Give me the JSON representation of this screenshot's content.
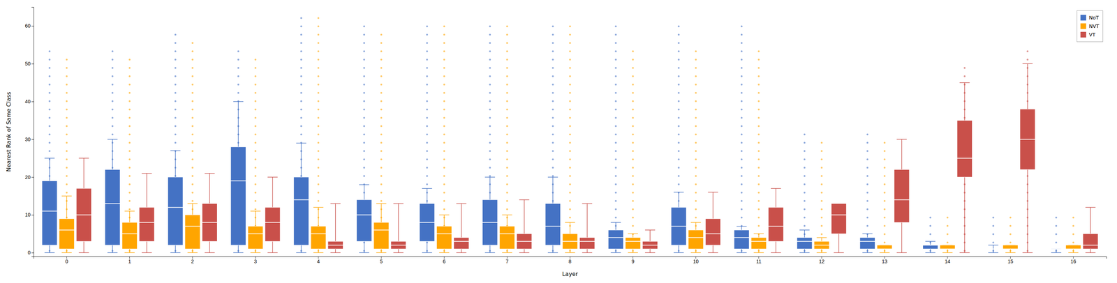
{
  "chart_data": {
    "type": "box",
    "xlabel": "Layer",
    "ylabel": "Nearest Rank of Same Class",
    "categories": [
      "0",
      "1",
      "2",
      "3",
      "4",
      "5",
      "6",
      "7",
      "8",
      "9",
      "10",
      "11",
      "12",
      "13",
      "14",
      "15",
      "16"
    ],
    "ylim": [
      -1,
      65
    ],
    "yticks": [
      0,
      10,
      20,
      30,
      40,
      50,
      60
    ],
    "grid": false,
    "legend": "upper right",
    "series": [
      {
        "name": "NoT",
        "color": "#4472C4",
        "q1": [
          2,
          2,
          2,
          2,
          2,
          3,
          3,
          2,
          2,
          1,
          2,
          1,
          1,
          1,
          1,
          1,
          1
        ],
        "median": [
          11,
          13,
          12,
          19,
          14,
          10,
          8,
          8,
          7,
          4,
          7,
          4,
          3,
          3,
          2,
          1,
          1
        ],
        "q3": [
          19,
          22,
          20,
          28,
          20,
          14,
          13,
          14,
          13,
          6,
          12,
          6,
          4,
          4,
          2,
          1,
          1
        ],
        "whislo": [
          0,
          0,
          0,
          0,
          0,
          0,
          0,
          0,
          0,
          0,
          0,
          0,
          0,
          0,
          0,
          0,
          0
        ],
        "whishi": [
          25,
          30,
          27,
          40,
          29,
          18,
          17,
          20,
          20,
          8,
          16,
          7,
          6,
          5,
          3,
          2,
          1
        ],
        "dots": [
          [
            0.5,
            2.7,
            4.9,
            7.1,
            9.3,
            11.5,
            13.7,
            15.9,
            18.1,
            20.3,
            22.5,
            24.7,
            26.9,
            29.1,
            31.3,
            33.5,
            35.7,
            37.9,
            40.1,
            42.3,
            44.5,
            46.7,
            48.9,
            51.1,
            53.3
          ],
          [
            0.5,
            2.7,
            4.9,
            7.1,
            9.3,
            11.5,
            13.7,
            15.9,
            18.1,
            20.3,
            22.5,
            24.7,
            26.9,
            29.1,
            31.3,
            33.5,
            35.7,
            37.9,
            40.1,
            42.3,
            44.5,
            46.7,
            48.9,
            51.1,
            53.3
          ],
          [
            0.5,
            2.7,
            4.9,
            7.1,
            9.3,
            11.5,
            13.7,
            15.9,
            18.1,
            20.3,
            22.5,
            24.7,
            26.9,
            29.1,
            31.3,
            33.5,
            35.7,
            37.9,
            40.1,
            42.3,
            44.5,
            46.7,
            48.9,
            51.1,
            53.3,
            55.5,
            57.7
          ],
          [
            0.5,
            2.7,
            4.9,
            7.1,
            9.3,
            11.5,
            13.7,
            15.9,
            18.1,
            20.3,
            22.5,
            24.7,
            26.9,
            29.1,
            31.3,
            33.5,
            35.7,
            37.9,
            40.1,
            42.3,
            44.5,
            46.7,
            48.9,
            51.1,
            53.3
          ],
          [
            0.5,
            2.7,
            4.9,
            7.1,
            9.3,
            11.5,
            13.7,
            15.9,
            18.1,
            20.3,
            22.5,
            24.7,
            26.9,
            29.1,
            31.3,
            33.5,
            35.7,
            37.9,
            40.1,
            42.3,
            44.5,
            46.7,
            48.9,
            51.1,
            53.3,
            55.5,
            57.7,
            59.9,
            62.1
          ],
          [
            0.5,
            2.7,
            4.9,
            7.1,
            9.3,
            11.5,
            13.7,
            15.9,
            18.1,
            20.3,
            22.5,
            24.7,
            26.9,
            29.1,
            31.3,
            33.5,
            35.7,
            37.9,
            40.1,
            42.3,
            44.5,
            46.7,
            48.9,
            51.1,
            53.3,
            55.5,
            57.7,
            59.9
          ],
          [
            0.5,
            2.7,
            4.9,
            7.1,
            9.3,
            11.5,
            13.7,
            15.9,
            18.1,
            20.3,
            22.5,
            24.7,
            26.9,
            29.1,
            31.3,
            33.5,
            35.7,
            37.9,
            40.1,
            42.3,
            44.5,
            46.7,
            48.9,
            51.1,
            53.3,
            55.5,
            57.7,
            59.9
          ],
          [
            0.5,
            2.7,
            4.9,
            7.1,
            9.3,
            11.5,
            13.7,
            15.9,
            18.1,
            20.3,
            22.5,
            24.7,
            26.9,
            29.1,
            31.3,
            33.5,
            35.7,
            37.9,
            40.1,
            42.3,
            44.5,
            46.7,
            48.9,
            51.1,
            53.3,
            55.5,
            57.7,
            59.9
          ],
          [
            0.5,
            2.7,
            4.9,
            7.1,
            9.3,
            11.5,
            13.7,
            15.9,
            18.1,
            20.3,
            22.5,
            24.7,
            26.9,
            29.1,
            31.3,
            33.5,
            35.7,
            37.9,
            40.1,
            42.3,
            44.5,
            46.7,
            48.9,
            51.1,
            53.3,
            55.5,
            57.7,
            59.9
          ],
          [
            0.5,
            2.7,
            4.9,
            7.1,
            9.3,
            11.5,
            13.7,
            15.9,
            18.1,
            20.3,
            22.5,
            24.7,
            26.9,
            29.1,
            31.3,
            33.5,
            35.7,
            37.9,
            40.1,
            42.3,
            44.5,
            46.7,
            48.9,
            51.1,
            53.3,
            55.5,
            57.7,
            59.9
          ],
          [
            0.5,
            2.7,
            4.9,
            7.1,
            9.3,
            11.5,
            13.7,
            15.9,
            18.1,
            20.3,
            22.5,
            24.7,
            26.9,
            29.1,
            31.3,
            33.5,
            35.7,
            37.9,
            40.1,
            42.3,
            44.5,
            46.7,
            48.9,
            51.1,
            53.3,
            55.5,
            57.7,
            59.9
          ],
          [
            0.5,
            2.7,
            4.9,
            7.1,
            9.3,
            11.5,
            13.7,
            15.9,
            18.1,
            20.3,
            22.5,
            24.7,
            26.9,
            29.1,
            31.3,
            33.5,
            35.7,
            37.9,
            40.1,
            42.3,
            44.5,
            46.7,
            48.9,
            51.1,
            53.3,
            55.5,
            57.7,
            59.9
          ],
          [
            0.5,
            2.7,
            4.9,
            7.1,
            9.3,
            11.5,
            13.7,
            15.9,
            18.1,
            20.3,
            22.5,
            24.7,
            26.9,
            29.1,
            31.3
          ],
          [
            0.5,
            2.7,
            4.9,
            7.1,
            9.3,
            11.5,
            13.7,
            15.9,
            18.1,
            20.3,
            22.5,
            24.7,
            26.9,
            29.1,
            31.3
          ],
          [
            0.5,
            2.7,
            4.9,
            7.1,
            9.3
          ],
          [
            0.5,
            2.7,
            4.9,
            7.1,
            9.3
          ],
          [
            0.5,
            2.7,
            4.9,
            7.1,
            9.3
          ]
        ]
      },
      {
        "name": "NVT",
        "color": "#FFA500",
        "q1": [
          1,
          1,
          1,
          1,
          1,
          1,
          1,
          1,
          1,
          1,
          1,
          1,
          1,
          1,
          1,
          1,
          1
        ],
        "median": [
          6,
          5,
          7,
          5,
          5,
          6,
          5,
          5,
          3,
          3,
          4,
          3,
          2,
          1,
          1,
          1,
          1
        ],
        "q3": [
          9,
          8,
          10,
          7,
          7,
          8,
          7,
          7,
          5,
          4,
          6,
          4,
          3,
          2,
          2,
          2,
          2
        ],
        "whislo": [
          0,
          0,
          0,
          0,
          0,
          0,
          0,
          0,
          0,
          0,
          0,
          0,
          0,
          0,
          0,
          0,
          0
        ],
        "whishi": [
          15,
          11,
          13,
          11,
          12,
          13,
          10,
          10,
          8,
          5,
          8,
          5,
          4,
          2,
          2,
          2,
          2
        ],
        "dots": [
          [
            0.5,
            2.7,
            4.9,
            7.1,
            9.3,
            11.5,
            13.7,
            15.9,
            18.1,
            20.3,
            22.5,
            24.7,
            26.9,
            29.1,
            31.3,
            33.5,
            35.7,
            37.9,
            40.1,
            42.3,
            44.5,
            46.7,
            48.9,
            51.1
          ],
          [
            0.5,
            2.7,
            4.9,
            7.1,
            9.3,
            11.5,
            13.7,
            15.9,
            18.1,
            20.3,
            22.5,
            24.7,
            26.9,
            29.1,
            31.3,
            33.5,
            35.7,
            37.9,
            40.1,
            42.3,
            44.5,
            46.7,
            48.9,
            51.1
          ],
          [
            0.5,
            2.7,
            4.9,
            7.1,
            9.3,
            11.5,
            13.7,
            15.9,
            18.1,
            20.3,
            22.5,
            24.7,
            26.9,
            29.1,
            31.3,
            33.5,
            35.7,
            37.9,
            40.1,
            42.3,
            44.5,
            46.7,
            48.9,
            51.1,
            53.3,
            55.5
          ],
          [
            0.5,
            2.7,
            4.9,
            7.1,
            9.3,
            11.5,
            13.7,
            15.9,
            18.1,
            20.3,
            22.5,
            24.7,
            26.9,
            29.1,
            31.3,
            33.5,
            35.7,
            37.9,
            40.1,
            42.3,
            44.5,
            46.7,
            48.9,
            51.1
          ],
          [
            0.5,
            2.7,
            4.9,
            7.1,
            9.3,
            11.5,
            13.7,
            15.9,
            18.1,
            20.3,
            22.5,
            24.7,
            26.9,
            29.1,
            31.3,
            33.5,
            35.7,
            37.9,
            40.1,
            42.3,
            44.5,
            46.7,
            48.9,
            51.1,
            53.3,
            55.5,
            57.7,
            59.9,
            62.1
          ],
          [
            0.5,
            2.7,
            4.9,
            7.1,
            9.3,
            11.5,
            13.7,
            15.9,
            18.1,
            20.3,
            22.5,
            24.7,
            26.9,
            29.1,
            31.3,
            33.5,
            35.7,
            37.9,
            40.1,
            42.3,
            44.5,
            46.7,
            48.9,
            51.1,
            53.3,
            55.5,
            57.7
          ],
          [
            0.5,
            2.7,
            4.9,
            7.1,
            9.3,
            11.5,
            13.7,
            15.9,
            18.1,
            20.3,
            22.5,
            24.7,
            26.9,
            29.1,
            31.3,
            33.5,
            35.7,
            37.9,
            40.1,
            42.3,
            44.5,
            46.7,
            48.9,
            51.1,
            53.3,
            55.5,
            57.7,
            59.9
          ],
          [
            0.5,
            2.7,
            4.9,
            7.1,
            9.3,
            11.5,
            13.7,
            15.9,
            18.1,
            20.3,
            22.5,
            24.7,
            26.9,
            29.1,
            31.3,
            33.5,
            35.7,
            37.9,
            40.1,
            42.3,
            44.5,
            46.7,
            48.9,
            51.1,
            53.3,
            55.5,
            57.7,
            59.9
          ],
          [
            0.5,
            2.7,
            4.9,
            7.1,
            9.3,
            11.5,
            13.7,
            15.9,
            18.1,
            20.3,
            22.5,
            24.7,
            26.9,
            29.1,
            31.3,
            33.5,
            35.7,
            37.9,
            40.1,
            42.3,
            44.5,
            46.7,
            48.9,
            51.1,
            53.3,
            55.5,
            57.7,
            59.9
          ],
          [
            0.5,
            2.7,
            4.9,
            7.1,
            9.3,
            11.5,
            13.7,
            15.9,
            18.1,
            20.3,
            22.5,
            24.7,
            26.9,
            29.1,
            31.3,
            33.5,
            35.7,
            37.9,
            40.1,
            42.3,
            44.5,
            46.7,
            48.9,
            51.1,
            53.3
          ],
          [
            0.5,
            2.7,
            4.9,
            7.1,
            9.3,
            11.5,
            13.7,
            15.9,
            18.1,
            20.3,
            22.5,
            24.7,
            26.9,
            29.1,
            31.3,
            33.5,
            35.7,
            37.9,
            40.1,
            42.3,
            44.5,
            46.7,
            48.9,
            51.1,
            53.3
          ],
          [
            0.5,
            2.7,
            4.9,
            7.1,
            9.3,
            11.5,
            13.7,
            15.9,
            18.1,
            20.3,
            22.5,
            24.7,
            26.9,
            29.1,
            31.3,
            33.5,
            35.7,
            37.9,
            40.1,
            42.3,
            44.5,
            46.7,
            48.9,
            51.1,
            53.3
          ],
          [
            0.5,
            2.7,
            4.9,
            7.1,
            9.3,
            11.5,
            13.7,
            15.9,
            18.1,
            20.3,
            22.5,
            24.7,
            26.9,
            29.1
          ],
          [
            0.5,
            2.7,
            4.9,
            7.1,
            9.3,
            11.5,
            13.7,
            15.9,
            18.1,
            20.3,
            22.5,
            24.7,
            26.9,
            29.1
          ],
          [
            0.5,
            2.7,
            4.9,
            7.1,
            9.3
          ],
          [
            0.5,
            2.7,
            4.9,
            7.1,
            9.3
          ],
          [
            0.5,
            2.7,
            4.9,
            7.1,
            9.3
          ]
        ]
      },
      {
        "name": "VT",
        "color": "#C9504A",
        "q1": [
          3,
          3,
          3,
          3,
          1,
          1,
          1,
          1,
          1,
          1,
          2,
          3,
          5,
          8,
          20,
          22,
          1
        ],
        "median": [
          10,
          8,
          8,
          8,
          2,
          2,
          3,
          3,
          3,
          2,
          5,
          7,
          10,
          14,
          25,
          30,
          2
        ],
        "q3": [
          17,
          12,
          13,
          12,
          3,
          3,
          4,
          5,
          4,
          3,
          9,
          12,
          13,
          22,
          35,
          38,
          5
        ],
        "whislo": [
          0,
          0,
          0,
          0,
          0,
          0,
          0,
          0,
          0,
          0,
          0,
          0,
          0,
          0,
          0,
          0,
          0
        ],
        "whishi": [
          25,
          21,
          21,
          20,
          13,
          13,
          13,
          14,
          13,
          6,
          16,
          17,
          12,
          30,
          45,
          50,
          12
        ],
        "dots": [
          [],
          [],
          [],
          [],
          [],
          [],
          [],
          [],
          [],
          [],
          [],
          [],
          [],
          [],
          [
            0.5,
            2.7,
            4.9,
            7.1,
            9.3,
            11.5,
            13.7,
            15.9,
            18.1,
            20.3,
            22.5,
            24.7,
            26.9,
            29.1,
            31.3,
            33.5,
            35.7,
            37.9,
            40.1,
            42.3,
            44.5,
            46.7,
            48.9
          ],
          [
            0.5,
            2.7,
            4.9,
            7.1,
            9.3,
            11.5,
            13.7,
            15.9,
            18.1,
            20.3,
            22.5,
            24.7,
            26.9,
            29.1,
            31.3,
            33.5,
            35.7,
            37.9,
            40.1,
            42.3,
            44.5,
            46.7,
            48.9,
            51.1,
            53.3
          ],
          []
        ]
      }
    ]
  }
}
